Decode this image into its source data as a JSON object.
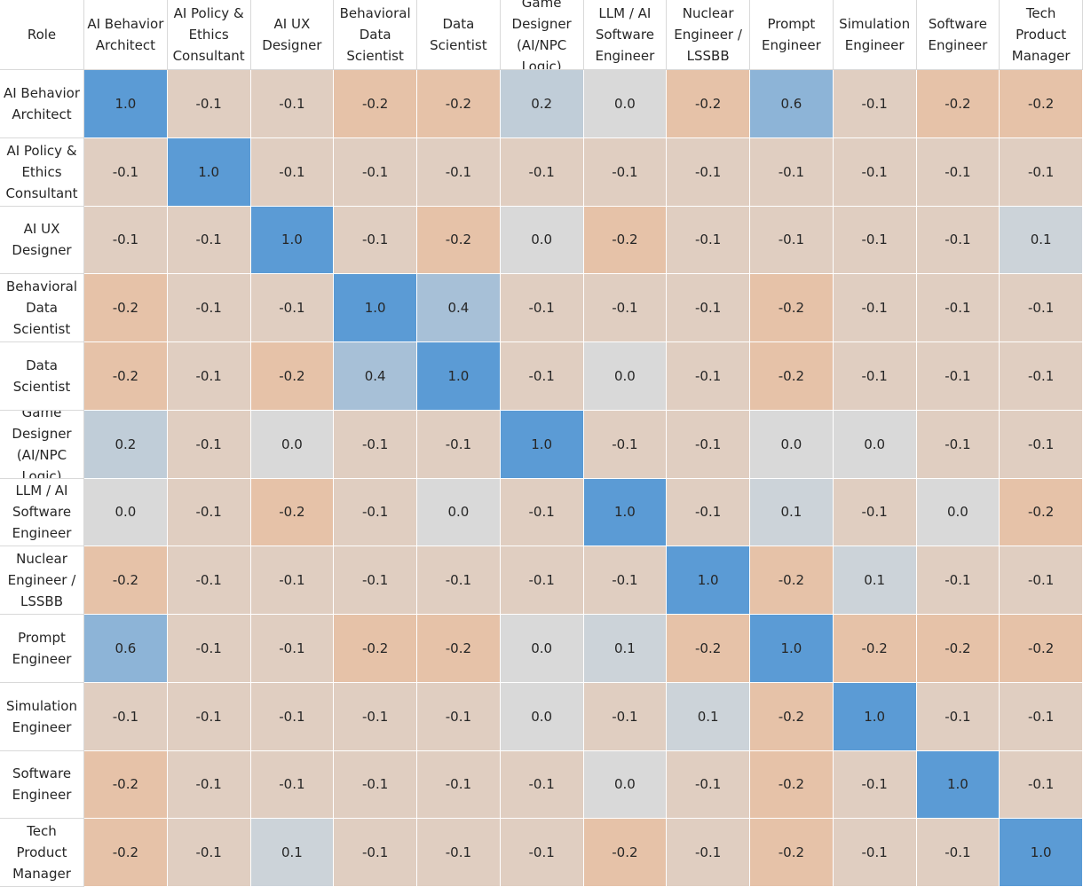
{
  "corner_label": "Role",
  "chart_data": {
    "type": "heatmap",
    "title": "",
    "row_header_label": "Role",
    "labels": [
      "AI Behavior Architect",
      "AI Policy & Ethics Consultant",
      "AI UX Designer",
      "Behavioral Data Scientist",
      "Data Scientist",
      "Game Designer (AI/NPC Logic)",
      "LLM / AI Software Engineer",
      "Nuclear Engineer / LSSBB",
      "Prompt Engineer",
      "Simulation Engineer",
      "Software Engineer",
      "Tech Product Manager"
    ],
    "matrix": [
      [
        "1.0",
        "-0.1",
        "-0.1",
        "-0.2",
        "-0.2",
        "0.2",
        "0.0",
        "-0.2",
        "0.6",
        "-0.1",
        "-0.2",
        "-0.2"
      ],
      [
        "-0.1",
        "1.0",
        "-0.1",
        "-0.1",
        "-0.1",
        "-0.1",
        "-0.1",
        "-0.1",
        "-0.1",
        "-0.1",
        "-0.1",
        "-0.1"
      ],
      [
        "-0.1",
        "-0.1",
        "1.0",
        "-0.1",
        "-0.2",
        "0.0",
        "-0.2",
        "-0.1",
        "-0.1",
        "-0.1",
        "-0.1",
        "0.1"
      ],
      [
        "-0.2",
        "-0.1",
        "-0.1",
        "1.0",
        "0.4",
        "-0.1",
        "-0.1",
        "-0.1",
        "-0.2",
        "-0.1",
        "-0.1",
        "-0.1"
      ],
      [
        "-0.2",
        "-0.1",
        "-0.2",
        "0.4",
        "1.0",
        "-0.1",
        "0.0",
        "-0.1",
        "-0.2",
        "-0.1",
        "-0.1",
        "-0.1"
      ],
      [
        "0.2",
        "-0.1",
        "0.0",
        "-0.1",
        "-0.1",
        "1.0",
        "-0.1",
        "-0.1",
        "0.0",
        "0.0",
        "-0.1",
        "-0.1"
      ],
      [
        "0.0",
        "-0.1",
        "-0.2",
        "-0.1",
        "0.0",
        "-0.1",
        "1.0",
        "-0.1",
        "0.1",
        "-0.1",
        "0.0",
        "-0.2"
      ],
      [
        "-0.2",
        "-0.1",
        "-0.1",
        "-0.1",
        "-0.1",
        "-0.1",
        "-0.1",
        "1.0",
        "-0.2",
        "0.1",
        "-0.1",
        "-0.1"
      ],
      [
        "0.6",
        "-0.1",
        "-0.1",
        "-0.2",
        "-0.2",
        "0.0",
        "0.1",
        "-0.2",
        "1.0",
        "-0.2",
        "-0.2",
        "-0.2"
      ],
      [
        "-0.1",
        "-0.1",
        "-0.1",
        "-0.1",
        "-0.1",
        "0.0",
        "-0.1",
        "0.1",
        "-0.2",
        "1.0",
        "-0.1",
        "-0.1"
      ],
      [
        "-0.2",
        "-0.1",
        "-0.1",
        "-0.1",
        "-0.1",
        "-0.1",
        "0.0",
        "-0.1",
        "-0.2",
        "-0.1",
        "1.0",
        "-0.1"
      ],
      [
        "-0.2",
        "-0.1",
        "0.1",
        "-0.1",
        "-0.1",
        "-0.1",
        "-0.2",
        "-0.1",
        "-0.2",
        "-0.1",
        "-0.1",
        "1.0"
      ]
    ],
    "colors": {
      "positive_max": "#5b9bd5",
      "neutral": "#d9d9d9",
      "negative": "#e6c2a8"
    }
  }
}
